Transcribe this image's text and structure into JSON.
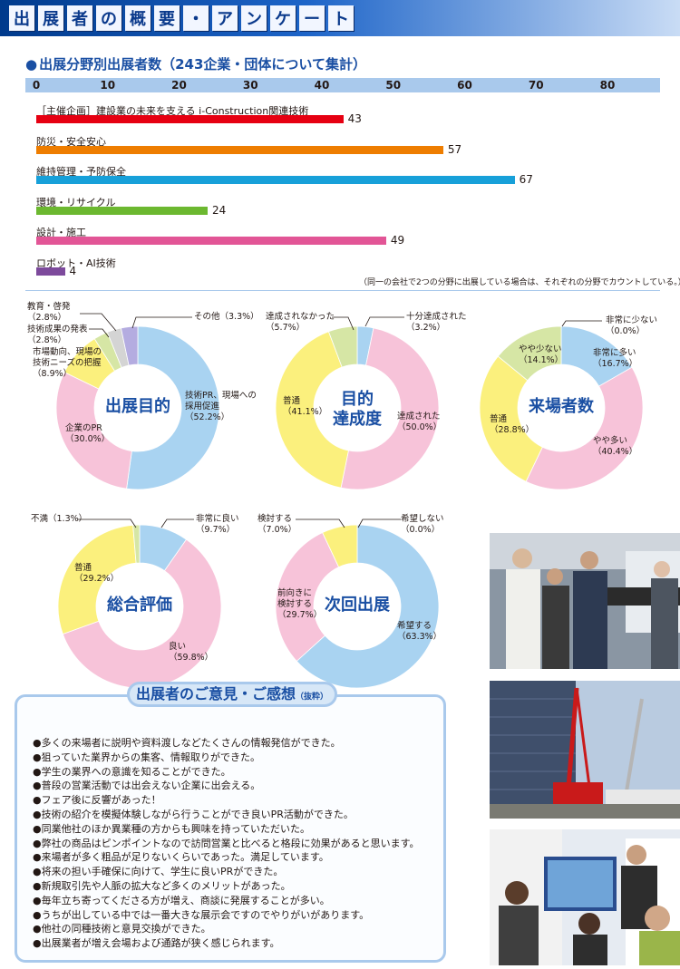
{
  "banner": {
    "chars": [
      "出",
      "展",
      "者",
      "の",
      "概",
      "要",
      "・",
      "ア",
      "ン",
      "ケ",
      "ー",
      "ト"
    ]
  },
  "section": {
    "bullet": "●",
    "title": "出展分野別出展者数（243企業・団体について集計）",
    "note": "（同一の会社で2つの分野に出展している場合は、それぞれの分野でカウントしている。）"
  },
  "chart_data": [
    {
      "type": "bar",
      "orientation": "horizontal",
      "title": "出展分野別出展者数（243企業・団体について集計）",
      "xlim": [
        0,
        80
      ],
      "ticks": [
        "0",
        "10",
        "20",
        "30",
        "40",
        "50",
        "60",
        "70",
        "80"
      ],
      "categories": [
        "［主催企画］建設業の未来を支える i-Construction関連技術",
        "防災・安全安心",
        "維持管理・予防保全",
        "環境・リサイクル",
        "設計・施工",
        "ロボット・AI技術"
      ],
      "values": [
        43,
        57,
        67,
        24,
        49,
        4
      ],
      "colors": [
        "#e60012",
        "#ee7d00",
        "#17a0d9",
        "#6cb830",
        "#e25596",
        "#7d4a9c"
      ]
    },
    {
      "type": "pie",
      "title": "出展目的",
      "slices": [
        {
          "label": "技術PR、現場への採用促進",
          "value": 52.2,
          "color": "#a9d3f1"
        },
        {
          "label": "企業のPR",
          "value": 30.0,
          "color": "#f7c3d9"
        },
        {
          "label": "市場動向、現場の技術ニーズの把握",
          "value": 8.9,
          "color": "#fbf07d"
        },
        {
          "label": "技術成果の発表",
          "value": 2.8,
          "color": "#d6e6a5"
        },
        {
          "label": "教育・啓発",
          "value": 2.8,
          "color": "#d4d4d4"
        },
        {
          "label": "その他",
          "value": 3.3,
          "color": "#b4ace0"
        }
      ]
    },
    {
      "type": "pie",
      "title": "目的達成度",
      "slices": [
        {
          "label": "十分達成された",
          "value": 3.2,
          "color": "#a9d3f1"
        },
        {
          "label": "達成された",
          "value": 50.0,
          "color": "#f7c3d9"
        },
        {
          "label": "普通",
          "value": 41.1,
          "color": "#fbf07d"
        },
        {
          "label": "達成されなかった",
          "value": 5.7,
          "color": "#d6e6a5"
        }
      ]
    },
    {
      "type": "pie",
      "title": "来場者数",
      "slices": [
        {
          "label": "非常に少ない",
          "value": 0.0,
          "color": "#d4d4d4"
        },
        {
          "label": "非常に多い",
          "value": 16.7,
          "color": "#a9d3f1"
        },
        {
          "label": "やや多い",
          "value": 40.4,
          "color": "#f7c3d9"
        },
        {
          "label": "普通",
          "value": 28.8,
          "color": "#fbf07d"
        },
        {
          "label": "やや少ない",
          "value": 14.1,
          "color": "#d6e6a5"
        }
      ]
    },
    {
      "type": "pie",
      "title": "総合評価",
      "slices": [
        {
          "label": "非常に良い",
          "value": 9.7,
          "color": "#a9d3f1"
        },
        {
          "label": "良い",
          "value": 59.8,
          "color": "#f7c3d9"
        },
        {
          "label": "普通",
          "value": 29.2,
          "color": "#fbf07d"
        },
        {
          "label": "不満",
          "value": 1.3,
          "color": "#d6e6a5"
        }
      ]
    },
    {
      "type": "pie",
      "title": "次回出展",
      "slices": [
        {
          "label": "希望しない",
          "value": 0.0,
          "color": "#d4d4d4"
        },
        {
          "label": "希望する",
          "value": 63.3,
          "color": "#a9d3f1"
        },
        {
          "label": "前向きに検討する",
          "value": 29.7,
          "color": "#f7c3d9"
        },
        {
          "label": "検討する",
          "value": 7.0,
          "color": "#fbf07d"
        }
      ]
    }
  ],
  "donut_titles": {
    "purpose": "出展目的",
    "achievement_1": "目的",
    "achievement_2": "達成度",
    "visitors": "来場者数",
    "overall": "総合評価",
    "next": "次回出展"
  },
  "pie_labels": {
    "p_sonota_1": "その他（3.3%）",
    "p_kyoiku_1": "教育・啓発",
    "p_kyoiku_2": "（2.8%）",
    "p_seika_1": "技術成果の発表",
    "p_seika_2": "（2.8%）",
    "p_shijo_1": "市場動向、現場の",
    "p_shijo_2": "技術ニーズの把握",
    "p_shijo_3": "（8.9%）",
    "p_gijutsu_1": "技術PR、現場への",
    "p_gijutsu_2": "採用促進",
    "p_gijutsu_3": "（52.2%）",
    "p_kigyo_1": "企業のPR",
    "p_kigyo_2": "（30.0%）",
    "a_nashi_1": "達成されなかった",
    "a_nashi_2": "（5.7%）",
    "a_juubun_1": "十分達成された",
    "a_juubun_2": "（3.2%）",
    "a_futsu_1": "普通",
    "a_futsu_2": "（41.1%）",
    "a_tassei_1": "達成された",
    "a_tassei_2": "（50.0%）",
    "v_hisho_1": "非常に少ない",
    "v_hisho_2": "（0.0%）",
    "v_yasho_1": "やや少ない",
    "v_yasho_2": "（14.1%）",
    "v_hita_1": "非常に多い",
    "v_hita_2": "（16.7%）",
    "v_futsu_1": "普通",
    "v_futsu_2": "（28.8%）",
    "v_yata_1": "やや多い",
    "v_yata_2": "（40.4%）",
    "o_fuman_1": "不満（1.3%）",
    "o_hiyoi_1": "非常に良い",
    "o_hiyoi_2": "（9.7%）",
    "o_futsu_1": "普通",
    "o_futsu_2": "（29.2%）",
    "o_yoi_1": "良い",
    "o_yoi_2": "（59.8%）",
    "n_kento_1": "検討する",
    "n_kento_2": "（7.0%）",
    "n_kibo_nashi_1": "希望しない",
    "n_kibo_nashi_2": "（0.0%）",
    "n_mae_1": "前向きに",
    "n_mae_2": "検討する",
    "n_mae_3": "（29.7%）",
    "n_kibo_1": "希望する",
    "n_kibo_2": "（63.3%）"
  },
  "comments": {
    "title": "出展者のご意見・ご感想",
    "title_suffix": "（抜粋）",
    "items": [
      "●多くの来場者に説明や資料渡しなどたくさんの情報発信ができた。",
      "●狙っていた業界からの集客、情報取りができた。",
      "●学生の業界への意識を知ることができた。",
      "●普段の営業活動では出会えない企業に出会える。",
      "●フェア後に反響があった！",
      "●技術の紹介を模擬体験しながら行うことができ良いPR活動ができた。",
      "●同業他社のほか異業種の方からも興味を持っていただいた。",
      "●弊社の商品はピンポイントなので訪問営業と比べると格段に効果があると思います。",
      "●来場者が多く粗品が足りないくらいであった。満足しています。",
      "●将来の担い手確保に向けて、学生に良いPRができた。",
      "●新規取引先や人脈の拡大など多くのメリットがあった。",
      "●毎年立ち寄ってくださる方が増え、商談に発展することが多い。",
      "●うちが出している中では一番大きな展示会ですのでやりがいがあります。",
      "●他社の同種技術と意見交換ができた。",
      "●出展業者が増え会場および通路が狭く感じられます。"
    ]
  }
}
